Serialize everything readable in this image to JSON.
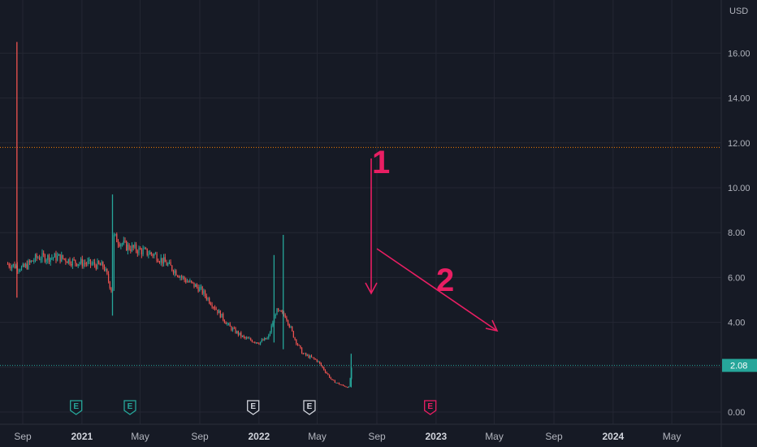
{
  "chart_data": {
    "type": "candlestick",
    "currency": "USD",
    "ylim": [
      -0.3,
      18.2
    ],
    "y_ticks": [
      "0.00",
      "2.00",
      "4.00",
      "6.00",
      "8.00",
      "10.00",
      "12.00",
      "14.00",
      "16.00"
    ],
    "x_ticks": [
      {
        "label": "Sep",
        "date": "2020-09",
        "year": false
      },
      {
        "label": "2021",
        "date": "2021-01",
        "year": true
      },
      {
        "label": "May",
        "date": "2021-05",
        "year": false
      },
      {
        "label": "Sep",
        "date": "2021-09",
        "year": false
      },
      {
        "label": "2022",
        "date": "2022-01",
        "year": true
      },
      {
        "label": "May",
        "date": "2022-05",
        "year": false
      },
      {
        "label": "Sep",
        "date": "2022-09",
        "year": false
      },
      {
        "label": "2023",
        "date": "2023-01",
        "year": true
      },
      {
        "label": "May",
        "date": "2023-05",
        "year": false
      },
      {
        "label": "Sep",
        "date": "2023-09",
        "year": false
      },
      {
        "label": "2024",
        "date": "2024-01",
        "year": true
      },
      {
        "label": "May",
        "date": "2024-05",
        "year": false
      }
    ],
    "price_path": [
      {
        "date": "2020-08-01",
        "close": 6.6
      },
      {
        "date": "2020-08-20",
        "close": 6.5
      },
      {
        "date": "2020-09-01",
        "close": 6.4
      },
      {
        "date": "2020-10-01",
        "close": 6.9
      },
      {
        "date": "2020-11-15",
        "close": 6.9
      },
      {
        "date": "2020-12-15",
        "close": 6.7
      },
      {
        "date": "2021-01-20",
        "close": 6.6
      },
      {
        "date": "2021-02-15",
        "close": 6.5
      },
      {
        "date": "2021-03-05",
        "close": 5.3
      },
      {
        "date": "2021-03-08",
        "close": 7.8
      },
      {
        "date": "2021-04-01",
        "close": 7.4
      },
      {
        "date": "2021-05-01",
        "close": 7.2
      },
      {
        "date": "2021-06-01",
        "close": 7.0
      },
      {
        "date": "2021-07-01",
        "close": 6.5
      },
      {
        "date": "2021-08-01",
        "close": 5.9
      },
      {
        "date": "2021-09-01",
        "close": 5.5
      },
      {
        "date": "2021-10-01",
        "close": 4.7
      },
      {
        "date": "2021-11-01",
        "close": 3.8
      },
      {
        "date": "2021-12-01",
        "close": 3.3
      },
      {
        "date": "2022-01-01",
        "close": 3.1
      },
      {
        "date": "2022-01-20",
        "close": 3.3
      },
      {
        "date": "2022-02-05",
        "close": 4.5
      },
      {
        "date": "2022-02-25",
        "close": 4.3
      },
      {
        "date": "2022-03-15",
        "close": 3.3
      },
      {
        "date": "2022-04-01",
        "close": 2.6
      },
      {
        "date": "2022-05-01",
        "close": 2.3
      },
      {
        "date": "2022-06-01",
        "close": 1.4
      },
      {
        "date": "2022-06-20",
        "close": 1.2
      },
      {
        "date": "2022-07-05",
        "close": 1.1
      },
      {
        "date": "2022-07-12",
        "close": 2.08
      }
    ],
    "spikes": [
      {
        "date": "2020-08-20",
        "high": 16.5,
        "low": 5.1
      },
      {
        "date": "2021-03-05",
        "high": 9.7,
        "low": 4.3
      },
      {
        "date": "2022-02-01",
        "high": 7.0,
        "low": 3.1
      },
      {
        "date": "2022-02-20",
        "high": 7.9,
        "low": 2.8
      },
      {
        "date": "2022-07-10",
        "high": 2.6,
        "low": 1.1
      }
    ],
    "horizontal_levels": [
      {
        "value": 11.8,
        "color": "#f57c00",
        "style": "dotted"
      },
      {
        "value": 2.08,
        "color": "#26a69a",
        "style": "dotted"
      }
    ],
    "last_price": "2.08",
    "earnings_markers": [
      {
        "date": "2020-12-20",
        "label": "E",
        "color": "#26a69a"
      },
      {
        "date": "2021-04-10",
        "label": "E",
        "color": "#26a69a"
      },
      {
        "date": "2021-12-20",
        "label": "E",
        "color": "#d1d4dc"
      },
      {
        "date": "2022-04-15",
        "label": "E",
        "color": "#d1d4dc"
      },
      {
        "date": "2022-12-20",
        "label": "E",
        "color": "#e91e63"
      }
    ],
    "annotations": [
      {
        "text": "1",
        "color": "#e91e63"
      },
      {
        "text": "2",
        "color": "#e91e63"
      }
    ],
    "colors": {
      "up": "#26a69a",
      "down": "#ef5350",
      "annotation": "#e91e63",
      "grid": "#242733",
      "background": "#161a25"
    },
    "grid": true
  }
}
